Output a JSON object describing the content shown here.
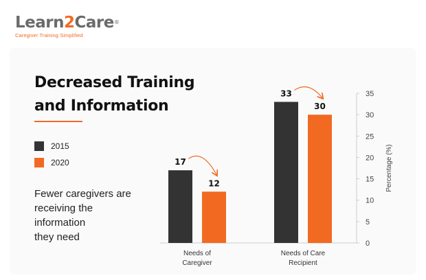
{
  "logo": {
    "name_part1": "Learn",
    "name_part2": "2",
    "name_part3": "Care",
    "registered": "®",
    "tagline": "Caregiver Training Simplified"
  },
  "title_lines": [
    "Decreased Training",
    "and Information"
  ],
  "note_lines": [
    "Fewer caregivers are",
    "receiving the",
    "information",
    "they need"
  ],
  "colors": {
    "accent": "#f26a21",
    "dark": "#333333"
  },
  "chart_data": {
    "type": "bar",
    "categories": [
      [
        "Needs of",
        "Caregiver"
      ],
      [
        "Needs of Care",
        "Recipient"
      ]
    ],
    "series": [
      {
        "name": "2015",
        "values": [
          17,
          33
        ],
        "color": "#333333"
      },
      {
        "name": "2020",
        "values": [
          12,
          30
        ],
        "color": "#f26a21"
      }
    ],
    "data_labels": [
      [
        "17",
        "12"
      ],
      [
        "33",
        "30"
      ]
    ],
    "title": "",
    "xlabel": "",
    "ylabel": "Percentage (%)",
    "ylim": [
      0,
      35
    ],
    "yticks": [
      0,
      5,
      10,
      15,
      20,
      25,
      30,
      35
    ],
    "y_axis_side": "right",
    "grid": false,
    "legend_position": "left"
  }
}
